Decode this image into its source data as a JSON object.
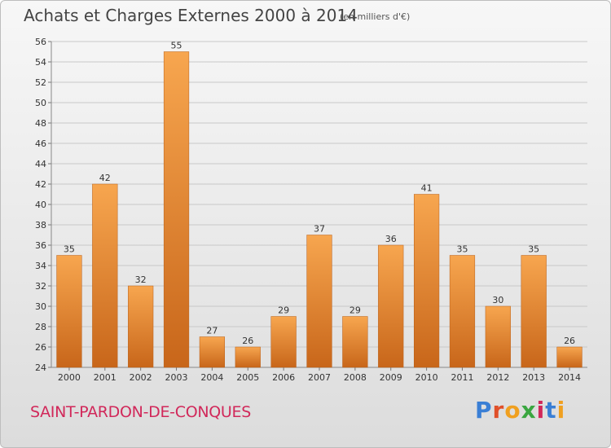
{
  "header": {
    "title": "Achats et Charges Externes 2000 à 2014",
    "unit_note": "(en milliers d'€)"
  },
  "footer": {
    "location": "SAINT-PARDON-DE-CONQUES",
    "brand": "Proxiti",
    "brand_colors": [
      "#3a7fd5",
      "#e0502a",
      "#f0a020",
      "#3aa640",
      "#d1285a",
      "#3a7fd5",
      "#f0a020"
    ]
  },
  "colors": {
    "bar_light": "#f7a64f",
    "bar_dark": "#c8661a",
    "axis_text": "#333333",
    "grid": "#c8c8c8",
    "location_text": "#d1285a"
  },
  "chart_data": {
    "type": "bar",
    "title": "Achats et Charges Externes 2000 à 2014",
    "subtitle": "(en milliers d'€)",
    "xlabel": "",
    "ylabel": "",
    "categories": [
      "2000",
      "2001",
      "2002",
      "2003",
      "2004",
      "2005",
      "2006",
      "2007",
      "2008",
      "2009",
      "2010",
      "2011",
      "2012",
      "2013",
      "2014"
    ],
    "values": [
      35,
      42,
      32,
      55,
      27,
      26,
      29,
      37,
      29,
      36,
      41,
      35,
      30,
      35,
      26
    ],
    "ylim": [
      24,
      56
    ],
    "yticks": [
      24,
      26,
      28,
      30,
      32,
      34,
      36,
      38,
      40,
      42,
      44,
      46,
      48,
      50,
      52,
      54,
      56
    ],
    "grid": true,
    "legend": "none"
  }
}
